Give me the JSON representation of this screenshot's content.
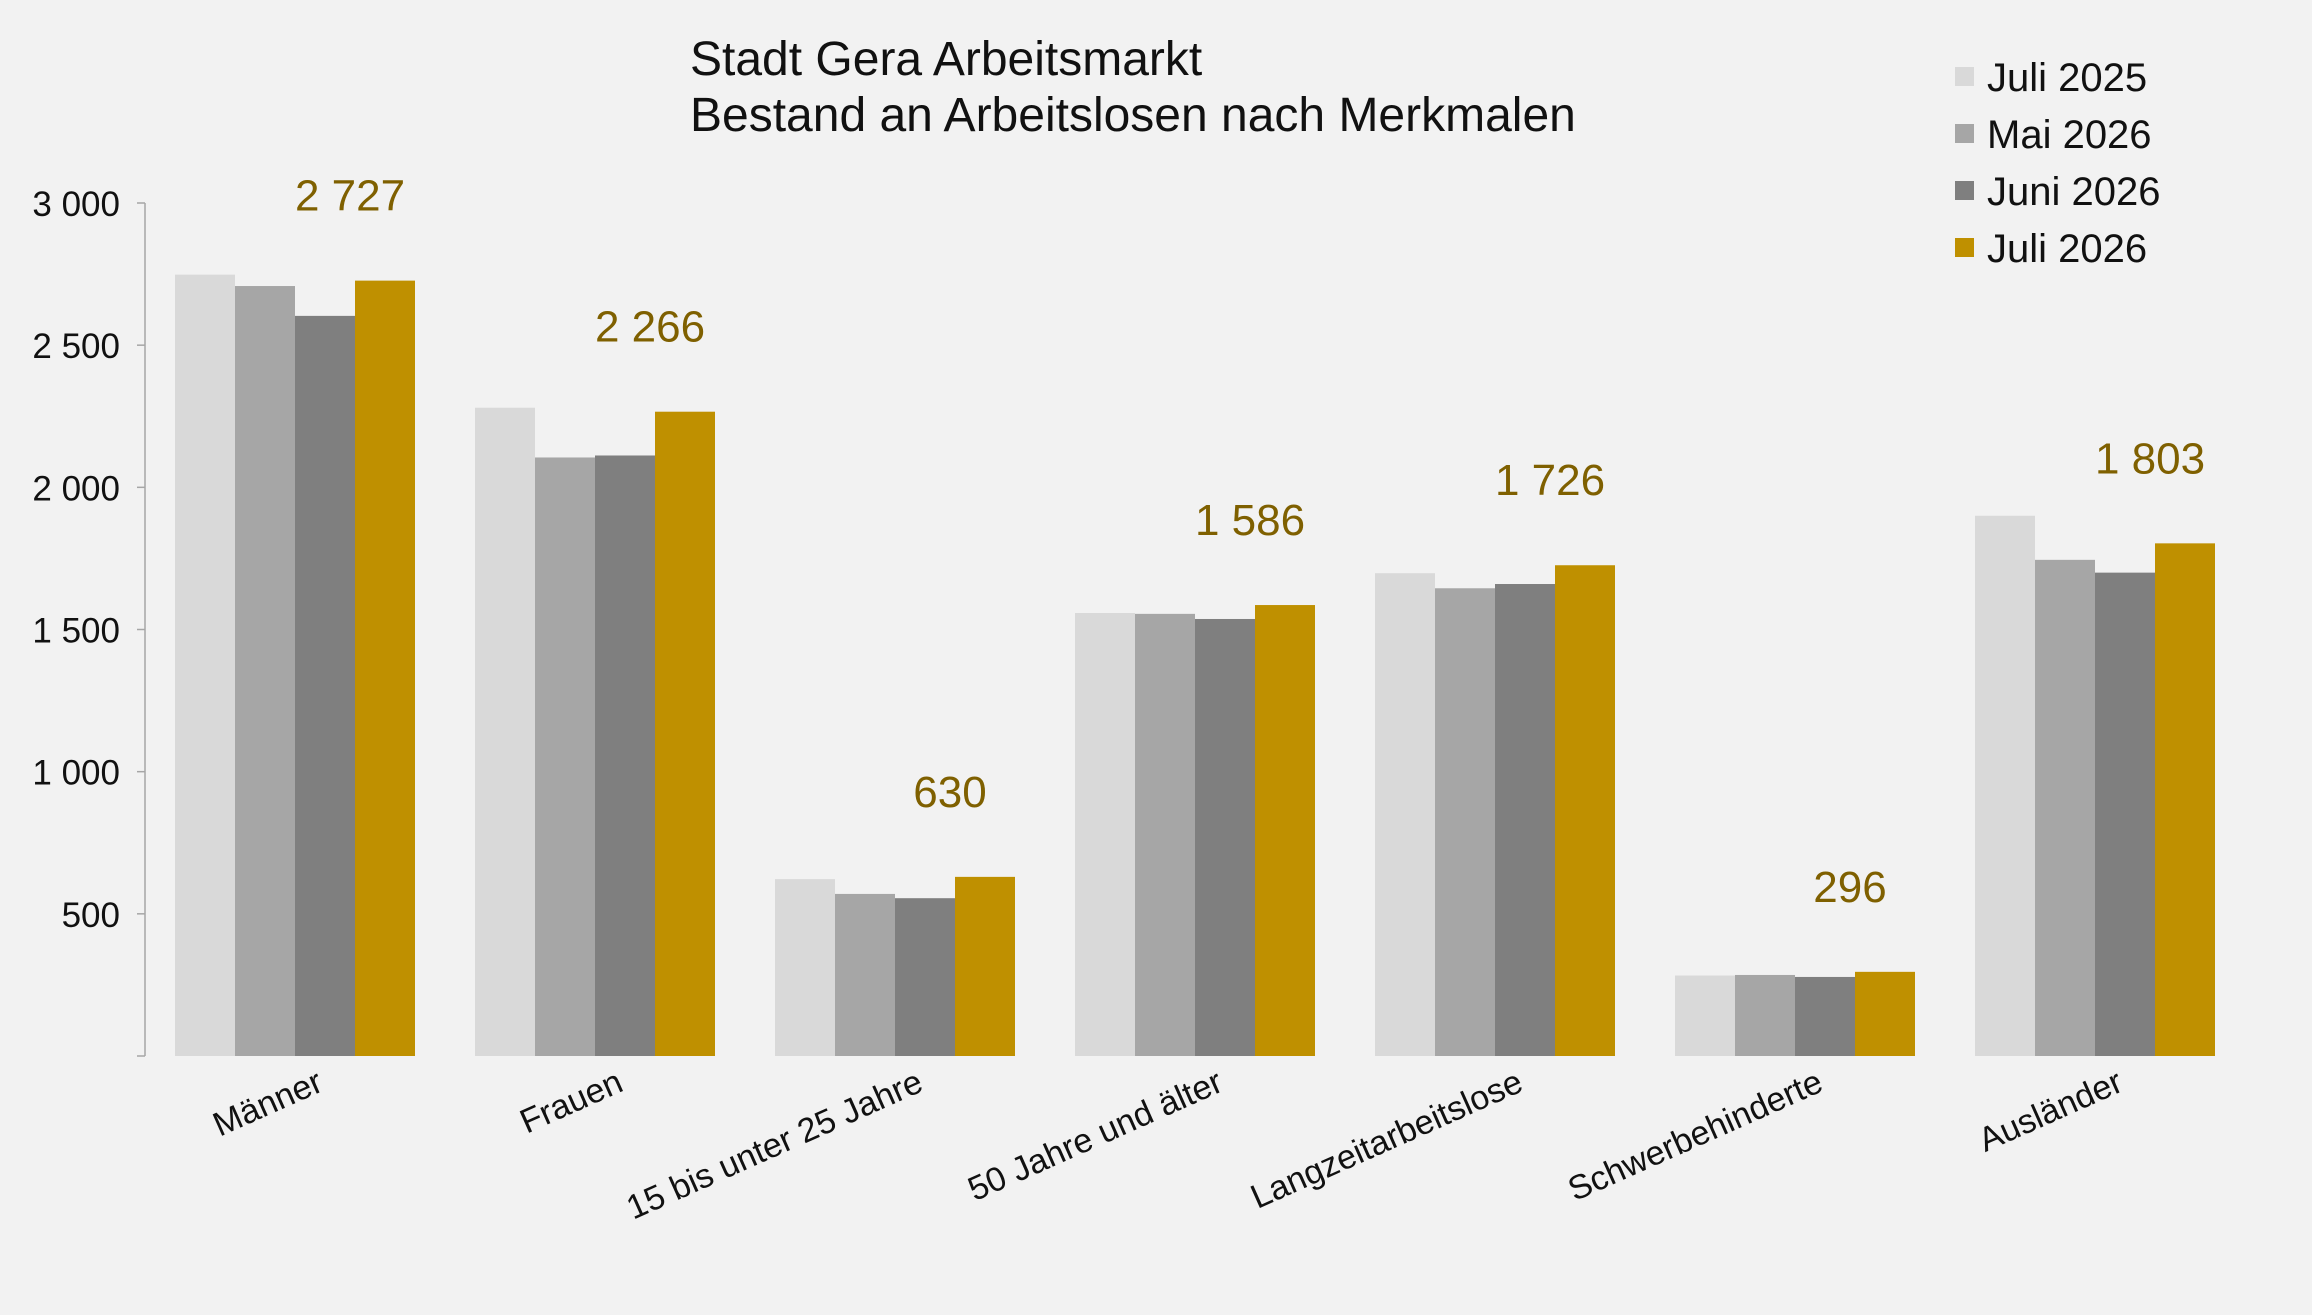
{
  "chart_data": {
    "type": "bar",
    "title_lines": [
      "Stadt Gera Arbeitsmarkt",
      "Bestand an Arbeitslosen nach Merkmalen"
    ],
    "categories": [
      "Männer",
      "Frauen",
      "15 bis unter 25 Jahre",
      "50 Jahre und älter",
      "Langzeitarbeitslose",
      "Schwerbehinderte",
      "Ausländer"
    ],
    "series": [
      {
        "name": "Juli 2025",
        "color": "#d9d9d9",
        "values": [
          2748,
          2280,
          622,
          1558,
          1698,
          283,
          1900
        ]
      },
      {
        "name": "Mai 2026",
        "color": "#a6a6a6",
        "values": [
          2708,
          2105,
          570,
          1555,
          1645,
          285,
          1745
        ]
      },
      {
        "name": "Juni 2026",
        "color": "#7f7f7f",
        "values": [
          2603,
          2112,
          555,
          1537,
          1660,
          278,
          1700
        ]
      },
      {
        "name": "Juli 2026",
        "color": "#bf9000",
        "values": [
          2727,
          2266,
          630,
          1586,
          1726,
          296,
          1803
        ]
      }
    ],
    "data_labels": [
      "2 727",
      "2 266",
      "630",
      "1 586",
      "1 726",
      "296",
      "1 803"
    ],
    "data_label_color": "#7f6000",
    "y_ticks": [
      500,
      1000,
      1500,
      2000,
      2500,
      3000
    ],
    "y_tick_labels": [
      "500",
      "1 000",
      "1 500",
      "2 000",
      "2 500",
      "3 000"
    ],
    "ylim": [
      0,
      3000
    ],
    "legend_position": "top-right",
    "grid": false
  }
}
